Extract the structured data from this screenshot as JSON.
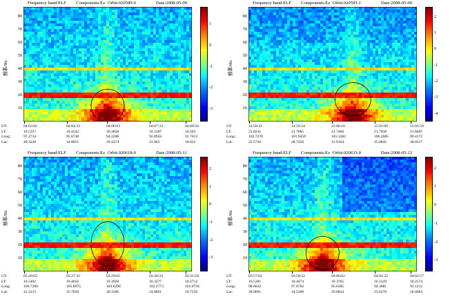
{
  "chart_data": [
    {
      "type": "heatmap",
      "frequency_band_label": "Frequency band:ELF",
      "component_label": "Components:Ez",
      "orbit_label": "Orbit:020589-0",
      "date_label": "Date:2008-05-09",
      "ylabel": "频率/Hz",
      "yticks": [
        "80",
        "70",
        "60",
        "50",
        "40",
        "30",
        "20",
        "10"
      ],
      "ylim": [
        0,
        87
      ],
      "color_ticks": [
        "1",
        "0",
        "-1",
        "-2",
        "-3"
      ],
      "color_range": [
        -3.6,
        1.8
      ],
      "row_labels": [
        "UT:",
        "LT:",
        "Long:",
        "Lat:"
      ],
      "time_columns": [
        {
          "ut": "04:03:02",
          "lt": "10.5357",
          "long": "97.2734",
          "lat": "40.3228"
        },
        {
          "ut": "04:04:33",
          "lt": "10.4542",
          "lat": "34.8851",
          "long": "95.6748"
        },
        {
          "ut": "04:06:03",
          "lt": "10.3828",
          "long": "94.2288",
          "lat": "29.4374"
        },
        {
          "ut": "04:07:33",
          "lt": "10.3187",
          "long": "92.8924",
          "lat": "23.963"
        },
        {
          "ut": "04:08:58",
          "lt": "10.263",
          "long": "91.7013",
          "lat": "18.822"
        }
      ],
      "enhancement_center_frac": 0.5,
      "enhancement_center_hz": 12
    },
    {
      "type": "heatmap",
      "frequency_band_label": "Frequency band:ELF",
      "component_label": "Components:Ez",
      "orbit_label": "Orbit:020595-1",
      "date_label": "Date:2008-05-09",
      "ylabel": "频率/Hz",
      "yticks": [
        "80",
        "70",
        "60",
        "50",
        "40",
        "30",
        "20",
        "10"
      ],
      "ylim": [
        0,
        87
      ],
      "color_ticks": [
        "2",
        "1",
        "0",
        "-1",
        "-2",
        "-3",
        "-4"
      ],
      "color_range": [
        -4.5,
        2.6
      ],
      "row_labels": [
        "UT:",
        "LT:",
        "Long:",
        "Lat:"
      ],
      "time_columns": [
        {
          "ut": "14:58:32",
          "lt": "21.8241",
          "long": "102.7278",
          "lat": "25.5726"
        },
        {
          "ut": "14:59:24",
          "lt": "21.7865",
          "long": "101.9459",
          "lat": "28.7456"
        },
        {
          "ut": "15:00:16",
          "lt": "21.7466",
          "long": "101.1283",
          "lat": "31.9164"
        },
        {
          "ut": "15:01:09",
          "lt": "21.7038",
          "long": "100.2685",
          "lat": "35.0845"
        },
        {
          "ut": "15:01:58",
          "lt": "21.6607",
          "long": "99.4172",
          "lat": "38.0517"
        }
      ],
      "enhancement_center_frac": 0.62,
      "enhancement_center_hz": 17
    },
    {
      "type": "heatmap",
      "frequency_band_label": "Frequency band:ELF",
      "component_label": "Components:Ez",
      "orbit_label": "Orbit:020618-0",
      "date_label": "Date:2008-05-11",
      "ylabel": "频率/Hz",
      "yticks": [
        "80",
        "70",
        "60",
        "50",
        "40",
        "30",
        "20",
        "10"
      ],
      "ylim": [
        0,
        87
      ],
      "color_ticks": [
        "2",
        "1",
        "0",
        "-1",
        "-2",
        "-3"
      ],
      "color_range": [
        -3.8,
        2.7
      ],
      "row_labels": [
        "UT:",
        "LT:",
        "Long:",
        "Lat:"
      ],
      "time_columns": [
        {
          "ut": "03:26:02",
          "lt": "10.5492",
          "long": "106.7268",
          "lat": "41.2215"
        },
        {
          "ut": "03:27:32",
          "lt": "10.4656",
          "long": "105.0975",
          "lat": "35.7858"
        },
        {
          "ut": "03:29:02",
          "lt": "10.3928",
          "long": "103.6296",
          "lat": "30.3396"
        },
        {
          "ut": "03:30:33",
          "lt": "10.3277",
          "long": "102.2773",
          "lat": "24.8861"
        },
        {
          "ut": "03:31:58",
          "lt": "10.2712",
          "long": "101.0756",
          "lat": "19.7256"
        }
      ],
      "enhancement_center_frac": 0.5,
      "enhancement_center_hz": 21
    },
    {
      "type": "heatmap",
      "frequency_band_label": "Frequency band:ELF",
      "component_label": "Components:Ez",
      "orbit_label": "Orbit:020633-0",
      "date_label": "Date:2008-05-12",
      "ylabel": "频率/Hz",
      "yticks": [
        "80",
        "70",
        "60",
        "50",
        "40",
        "30",
        "20",
        "10"
      ],
      "ylim": [
        0,
        87
      ],
      "color_ticks": [
        "2",
        "1",
        "0",
        "-1",
        "-2",
        "-3"
      ],
      "color_range": [
        -3.6,
        2.6
      ],
      "row_labels": [
        "UT:",
        "LT:",
        "Long:",
        "Lat:"
      ],
      "time_columns": [
        {
          "ut": "03:57:02",
          "lt": "10.5281",
          "long": "98.6632",
          "lat": "39.9691"
        },
        {
          "ut": "03:58:32",
          "lt": "10.4474",
          "long": "97.0762",
          "lat": "34.5306"
        },
        {
          "ut": "04:00:02",
          "lt": "10.3765",
          "long": "95.6385",
          "lat": "29.0824"
        },
        {
          "ut": "04:01:32",
          "lt": "10.3129",
          "long": "94.3081",
          "lat": "23.6276"
        },
        {
          "ut": "04:02:57",
          "lt": "10.2574",
          "long": "93.1212",
          "lat": "18.4663"
        }
      ],
      "enhancement_center_frac": 0.44,
      "enhancement_center_hz": 14
    }
  ]
}
